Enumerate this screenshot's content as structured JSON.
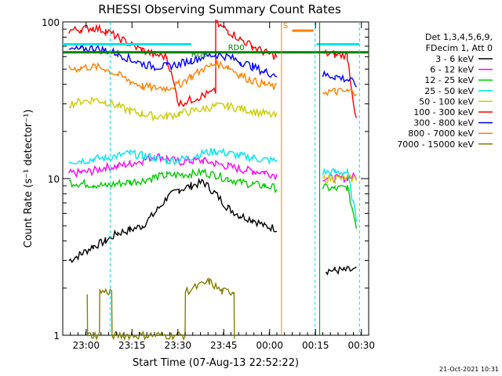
{
  "chart_data": {
    "type": "line",
    "title": "RHESSI Observing Summary Count Rates",
    "xlabel": "Start Time (07-Aug-13 22:52:22)",
    "ylabel": "Count Rate (s⁻¹ detector⁻¹)",
    "yscale": "log",
    "ylim": [
      1,
      100
    ],
    "xlim_minutes": [
      0,
      100
    ],
    "x_ticks": [
      {
        "label": "23:00",
        "min": 7.63
      },
      {
        "label": "23:15",
        "min": 22.63
      },
      {
        "label": "23:30",
        "min": 37.63
      },
      {
        "label": "23:45",
        "min": 52.63
      },
      {
        "label": "00:00",
        "min": 67.63
      },
      {
        "label": "00:15",
        "min": 82.63
      },
      {
        "label": "00:30",
        "min": 97.63
      }
    ],
    "y_ticks": [
      {
        "label": "1",
        "value": 1
      },
      {
        "label": "10",
        "value": 10
      },
      {
        "label": "100",
        "value": 100
      }
    ],
    "legend_header": [
      "Det 1,3,4,5,6,9,",
      "FDecim 1, Att 0"
    ],
    "series": [
      {
        "name": "3 - 6 keV",
        "color": "#000000",
        "points": [
          [
            2,
            3.0
          ],
          [
            6,
            3.3
          ],
          [
            10,
            3.7
          ],
          [
            14,
            4.0
          ],
          [
            18,
            4.5
          ],
          [
            22,
            4.7
          ],
          [
            26,
            5.0
          ],
          [
            30,
            6.0
          ],
          [
            34,
            7.5
          ],
          [
            38,
            8.5
          ],
          [
            42,
            9.0
          ],
          [
            46,
            9.5
          ],
          [
            50,
            8.0
          ],
          [
            54,
            6.5
          ],
          [
            58,
            5.8
          ],
          [
            62,
            5.5
          ],
          [
            66,
            5.0
          ],
          [
            70,
            4.8
          ]
        ],
        "points2": [
          [
            86,
            2.6
          ],
          [
            89,
            2.6
          ],
          [
            92,
            2.6
          ],
          [
            96,
            2.6
          ]
        ]
      },
      {
        "name": "6 - 12 keV",
        "color": "#ff00ff",
        "points": [
          [
            2,
            10.8
          ],
          [
            6,
            10.9
          ],
          [
            10,
            11.2
          ],
          [
            14,
            11.8
          ],
          [
            18,
            12.0
          ],
          [
            22,
            12.5
          ],
          [
            26,
            13.0
          ],
          [
            30,
            14.0
          ],
          [
            34,
            13.5
          ],
          [
            38,
            12.8
          ],
          [
            42,
            13.0
          ],
          [
            46,
            13.0
          ],
          [
            50,
            12.5
          ],
          [
            54,
            12.0
          ],
          [
            58,
            11.5
          ],
          [
            62,
            11.2
          ],
          [
            66,
            11.0
          ],
          [
            70,
            10.5
          ]
        ],
        "points2": [
          [
            85,
            10.2
          ],
          [
            89,
            10.0
          ],
          [
            93,
            10.2
          ],
          [
            96,
            10.3
          ]
        ]
      },
      {
        "name": "12 - 25 keV",
        "color": "#00cc00",
        "points": [
          [
            2,
            9.5
          ],
          [
            6,
            9.3
          ],
          [
            10,
            9.2
          ],
          [
            14,
            9.0
          ],
          [
            18,
            9.3
          ],
          [
            22,
            9.5
          ],
          [
            26,
            9.8
          ],
          [
            30,
            10.2
          ],
          [
            34,
            10.5
          ],
          [
            38,
            10.6
          ],
          [
            42,
            10.7
          ],
          [
            46,
            11.0
          ],
          [
            50,
            10.5
          ],
          [
            54,
            10.0
          ],
          [
            58,
            9.5
          ],
          [
            62,
            9.2
          ],
          [
            66,
            9.0
          ],
          [
            70,
            8.7
          ]
        ],
        "points2": [
          [
            85,
            8.8
          ],
          [
            89,
            8.6
          ],
          [
            93,
            8.8
          ],
          [
            96,
            5.0
          ]
        ]
      },
      {
        "name": "25 - 50 keV",
        "color": "#00e5ee",
        "points": [
          [
            2,
            13.0
          ],
          [
            6,
            13.0
          ],
          [
            10,
            13.3
          ],
          [
            14,
            13.6
          ],
          [
            18,
            14.0
          ],
          [
            22,
            14.5
          ],
          [
            26,
            14.0
          ],
          [
            30,
            13.6
          ],
          [
            34,
            13.0
          ],
          [
            38,
            13.2
          ],
          [
            42,
            13.7
          ],
          [
            46,
            14.5
          ],
          [
            50,
            15.0
          ],
          [
            54,
            14.5
          ],
          [
            58,
            14.0
          ],
          [
            62,
            13.6
          ],
          [
            66,
            13.2
          ],
          [
            70,
            13.0
          ]
        ],
        "points2": [
          [
            85,
            11.0
          ],
          [
            89,
            11.0
          ],
          [
            93,
            11.0
          ],
          [
            96,
            5.5
          ]
        ]
      },
      {
        "name": "50 - 100 keV",
        "color": "#cccc00",
        "points": [
          [
            2,
            30
          ],
          [
            6,
            31
          ],
          [
            10,
            32
          ],
          [
            14,
            31
          ],
          [
            18,
            29
          ],
          [
            22,
            27
          ],
          [
            26,
            26
          ],
          [
            30,
            25
          ],
          [
            34,
            25
          ],
          [
            38,
            26
          ],
          [
            42,
            27
          ],
          [
            46,
            28
          ],
          [
            50,
            29
          ],
          [
            54,
            29
          ],
          [
            58,
            28
          ],
          [
            62,
            27
          ],
          [
            66,
            26
          ],
          [
            70,
            25
          ]
        ],
        "points2": [
          [
            85,
            10
          ],
          [
            89,
            10
          ],
          [
            93,
            10
          ],
          [
            96,
            10
          ]
        ]
      },
      {
        "name": "100 - 300 keV",
        "color": "#ff0000",
        "points": [
          [
            2,
            88
          ],
          [
            6,
            90
          ],
          [
            10,
            92
          ],
          [
            14,
            88
          ],
          [
            18,
            80
          ],
          [
            22,
            72
          ],
          [
            26,
            66
          ],
          [
            30,
            62
          ],
          [
            34,
            60
          ],
          [
            38,
            30
          ],
          [
            42,
            32
          ],
          [
            46,
            34
          ],
          [
            50,
            36
          ],
          [
            50.01,
            98
          ],
          [
            54,
            88
          ],
          [
            58,
            78
          ],
          [
            62,
            70
          ],
          [
            66,
            64
          ],
          [
            70,
            60
          ]
        ],
        "points2": [
          [
            85,
            63
          ],
          [
            89,
            62
          ],
          [
            93,
            61
          ],
          [
            96,
            23
          ]
        ]
      },
      {
        "name": "300 - 800 keV",
        "color": "#0000ff",
        "points": [
          [
            2,
            66
          ],
          [
            6,
            67
          ],
          [
            10,
            68
          ],
          [
            14,
            66
          ],
          [
            18,
            63
          ],
          [
            22,
            58
          ],
          [
            26,
            54
          ],
          [
            30,
            52
          ],
          [
            34,
            52
          ],
          [
            38,
            54
          ],
          [
            42,
            57
          ],
          [
            46,
            60
          ],
          [
            50,
            62
          ],
          [
            54,
            60
          ],
          [
            58,
            56
          ],
          [
            62,
            52
          ],
          [
            66,
            48
          ],
          [
            70,
            46
          ]
        ],
        "points2": [
          [
            85,
            46
          ],
          [
            89,
            45
          ],
          [
            93,
            43
          ],
          [
            96,
            40
          ]
        ]
      },
      {
        "name": "800 - 7000 keV",
        "color": "#ff8000",
        "points": [
          [
            2,
            50
          ],
          [
            6,
            51
          ],
          [
            10,
            52
          ],
          [
            14,
            50
          ],
          [
            18,
            46
          ],
          [
            22,
            42
          ],
          [
            26,
            39
          ],
          [
            30,
            38
          ],
          [
            34,
            38
          ],
          [
            38,
            40
          ],
          [
            42,
            45
          ],
          [
            46,
            50
          ],
          [
            50,
            54
          ],
          [
            54,
            52
          ],
          [
            58,
            46
          ],
          [
            62,
            42
          ],
          [
            66,
            40
          ],
          [
            70,
            38
          ]
        ],
        "points2": [
          [
            85,
            36
          ],
          [
            89,
            36
          ],
          [
            93,
            36
          ],
          [
            96,
            36
          ]
        ]
      },
      {
        "name": "7000 - 15000 keV",
        "color": "#808000",
        "points": [
          [
            8,
            1.9
          ],
          [
            8.1,
            1.0
          ],
          [
            12,
            1.0
          ],
          [
            12.1,
            1.9
          ],
          [
            16,
            1.9
          ],
          [
            16.1,
            1.0
          ],
          [
            40,
            1.0
          ],
          [
            40.1,
            1.9
          ],
          [
            48,
            2.2
          ],
          [
            52,
            1.9
          ],
          [
            56,
            1.9
          ],
          [
            56.1,
            1.0
          ]
        ],
        "points2": []
      }
    ],
    "annotations": [
      {
        "text": "RD0",
        "color": "#008000",
        "x_min": 54,
        "y": 64
      },
      {
        "text": "RD6",
        "color": "#008000",
        "x_min": 42,
        "y": 58
      },
      {
        "text": "S",
        "color": "#ff8000",
        "x_min": 72,
        "y": 88
      }
    ],
    "timestamp": "21-Oct-2021 10:31"
  }
}
